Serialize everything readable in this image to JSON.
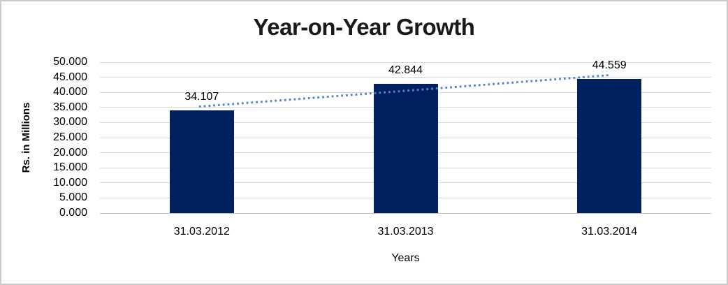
{
  "chart_data": {
    "type": "bar",
    "title": "Year-on-Year Growth",
    "xlabel": "Years",
    "ylabel": "Rs. in Millions",
    "categories": [
      "31.03.2012",
      "31.03.2013",
      "31.03.2014"
    ],
    "values": [
      34.107,
      42.844,
      44.559
    ],
    "data_labels": [
      "34.107",
      "42.844",
      "44.559"
    ],
    "ylim": [
      0,
      50
    ],
    "ytick_step": 5,
    "ytick_labels": [
      "0.000",
      "5.000",
      "10.000",
      "15.000",
      "20.000",
      "25.000",
      "30.000",
      "35.000",
      "40.000",
      "45.000",
      "50.000"
    ],
    "grid": true,
    "legend": false,
    "bar_color": "#002060",
    "gridline_color": "#d9d9d9",
    "axis_line_color": "#bfbfbf",
    "trendline": {
      "type": "linear",
      "style": "dotted",
      "color": "#4e87cb"
    }
  }
}
